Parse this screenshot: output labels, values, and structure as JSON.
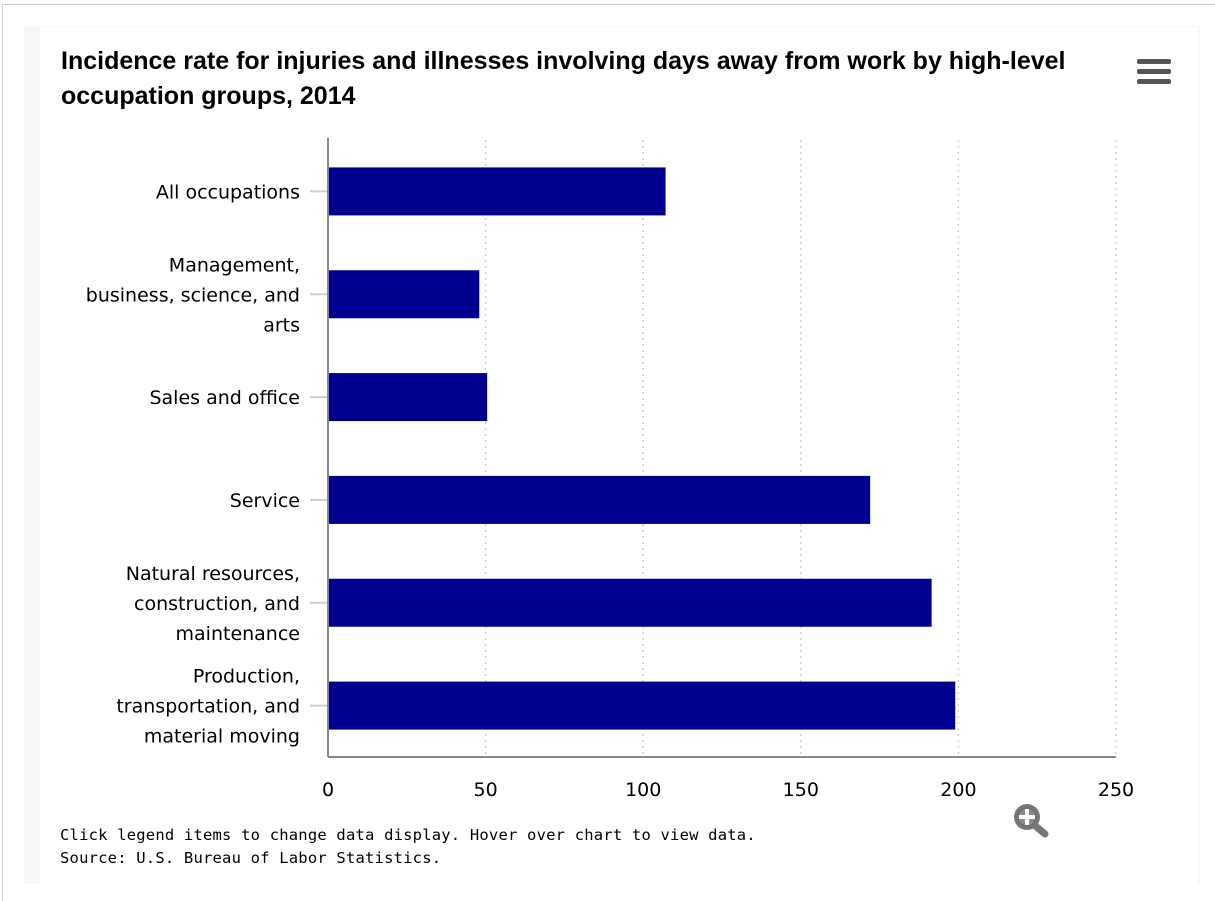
{
  "chart_data": {
    "type": "bar",
    "orientation": "horizontal",
    "title": "Incidence rate for injuries and illnesses involving days away from work by high-level occupation groups, 2014",
    "categories": [
      [
        "All occupations"
      ],
      [
        "Management,",
        "business, science, and",
        "arts"
      ],
      [
        "Sales and office"
      ],
      [
        "Service"
      ],
      [
        "Natural resources,",
        "construction, and",
        "maintenance"
      ],
      [
        "Production,",
        "transportation, and",
        "material moving"
      ]
    ],
    "values": [
      107.1,
      48,
      50.5,
      172,
      191.5,
      199
    ],
    "xlim": [
      0,
      250
    ],
    "xticks": [
      "0",
      "50",
      "100",
      "150",
      "200",
      "250"
    ],
    "xlabel": "",
    "ylabel": "",
    "grid": "vertical dotted",
    "legend": "none",
    "colors": {
      "bar": "#000090",
      "axis": "#888888",
      "grid": "#cccccc",
      "tick_mark": "#c0d0e0"
    }
  },
  "footnote": {
    "line1": "Click legend items to change data display. Hover over chart to view data.",
    "line2": "Source: U.S. Bureau of Labor Statistics."
  },
  "icons": {
    "menu": "hamburger-menu-icon",
    "zoom": "zoom-in-icon"
  }
}
